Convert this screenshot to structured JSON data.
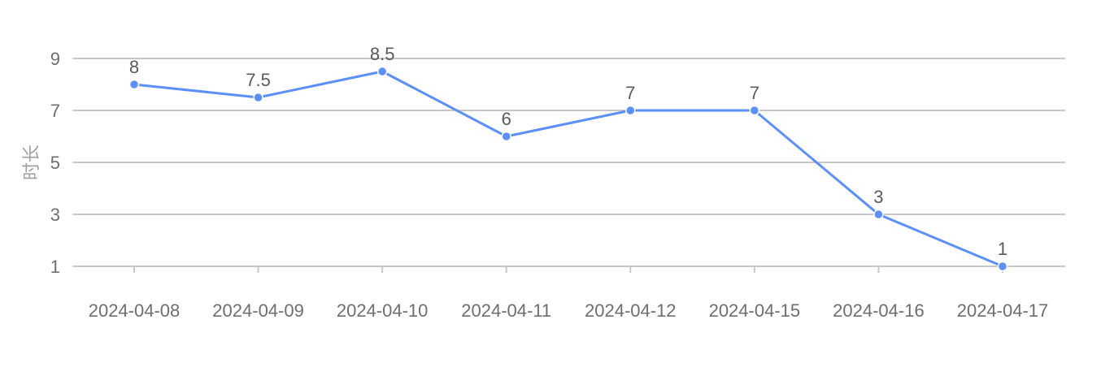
{
  "chart_data": {
    "type": "line",
    "title": "",
    "xlabel": "",
    "ylabel": "时长",
    "categories": [
      "2024-04-08",
      "2024-04-09",
      "2024-04-10",
      "2024-04-11",
      "2024-04-12",
      "2024-04-15",
      "2024-04-16",
      "2024-04-17"
    ],
    "series": [
      {
        "values": [
          8,
          7.5,
          8.5,
          6,
          7,
          7,
          3,
          1
        ],
        "color": "#5b8ff9"
      }
    ],
    "yticks": [
      1,
      3,
      5,
      7,
      9
    ],
    "ylim": [
      1,
      9
    ],
    "grid": true,
    "data_labels": true,
    "legend": "none"
  }
}
